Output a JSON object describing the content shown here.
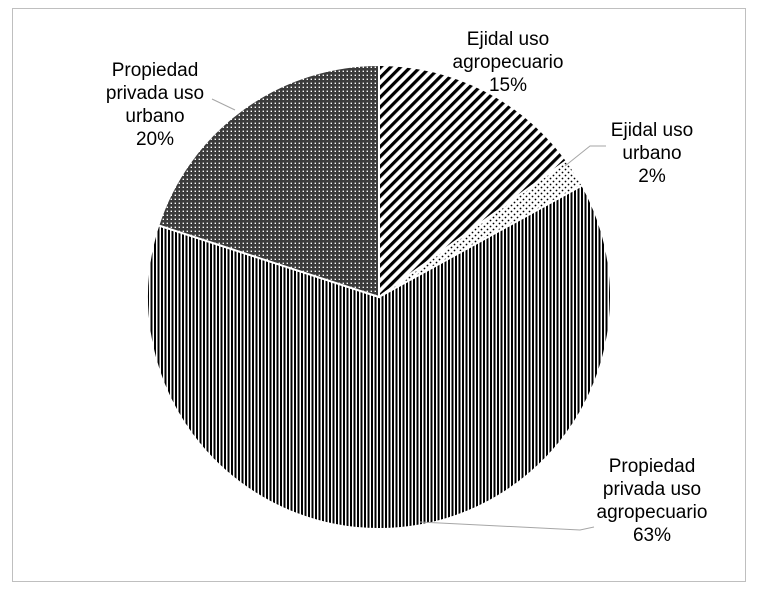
{
  "chart_data": {
    "type": "pie",
    "slices": [
      {
        "label_lines": [
          "Ejidal uso",
          "agropecuario",
          "15%"
        ],
        "value": 15,
        "pattern": "diagonal"
      },
      {
        "label_lines": [
          "Ejidal uso",
          "urbano",
          "2%"
        ],
        "value": 2,
        "pattern": "dots"
      },
      {
        "label_lines": [
          "Propiedad",
          "privada uso",
          "agropecuario",
          "63%"
        ],
        "value": 63,
        "pattern": "vertical"
      },
      {
        "label_lines": [
          "Propiedad",
          "privada uso",
          "urbano",
          "20%"
        ],
        "value": 20,
        "pattern": "grid"
      }
    ],
    "start_angle_deg": 0,
    "direction": "clockwise",
    "legend": "none"
  }
}
